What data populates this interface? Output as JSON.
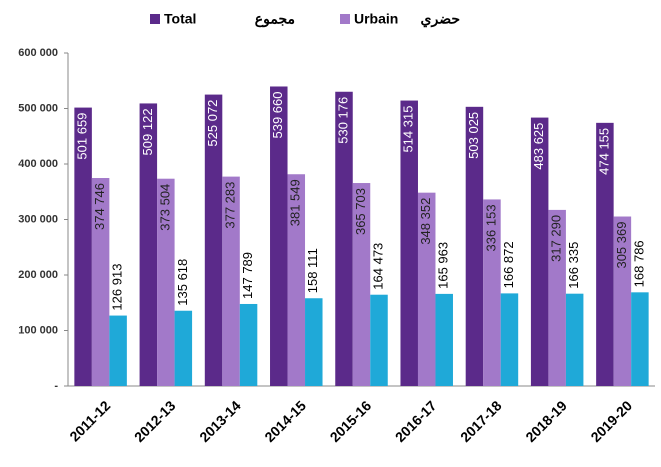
{
  "chart_data": {
    "type": "bar",
    "categories": [
      "2011-12",
      "2012-13",
      "2013-14",
      "2014-15",
      "2015-16",
      "2016-17",
      "2017-18",
      "2018-19",
      "2019-20"
    ],
    "series": [
      {
        "name": "Total",
        "name_ar": "مجموع",
        "color": "#5b2a8a",
        "values": [
          501659,
          509122,
          525072,
          539660,
          530176,
          514315,
          503025,
          483625,
          474155
        ],
        "value_labels": [
          "501 659",
          "509 122",
          "525 072",
          "539 660",
          "530 176",
          "514 315",
          "503 025",
          "483 625",
          "474 155"
        ]
      },
      {
        "name": "Urbain",
        "name_ar": "حضري",
        "color": "#a279c9",
        "values": [
          374746,
          373504,
          377283,
          381549,
          365703,
          348352,
          336153,
          317290,
          305369
        ],
        "value_labels": [
          "374 746",
          "373 504",
          "377 283",
          "381 549",
          "365 703",
          "348 352",
          "336 153",
          "317 290",
          "305 369"
        ]
      },
      {
        "color": "#1fa9d8",
        "values": [
          126913,
          135618,
          147789,
          158111,
          164473,
          165963,
          166872,
          166335,
          168786
        ],
        "value_labels": [
          "126 913",
          "135 618",
          "147 789",
          "158 111",
          "164 473",
          "165 963",
          "166 872",
          "166 335",
          "168 786"
        ]
      }
    ],
    "ylim": [
      0,
      600000
    ],
    "yticks": [
      {
        "value": 0,
        "label": "-"
      },
      {
        "value": 100000,
        "label": "100 000"
      },
      {
        "value": 200000,
        "label": "200 000"
      },
      {
        "value": 300000,
        "label": "300 000"
      },
      {
        "value": 400000,
        "label": "400 000"
      },
      {
        "value": 500000,
        "label": "500 000"
      },
      {
        "value": 600000,
        "label": "600 000"
      }
    ],
    "grid": false
  }
}
